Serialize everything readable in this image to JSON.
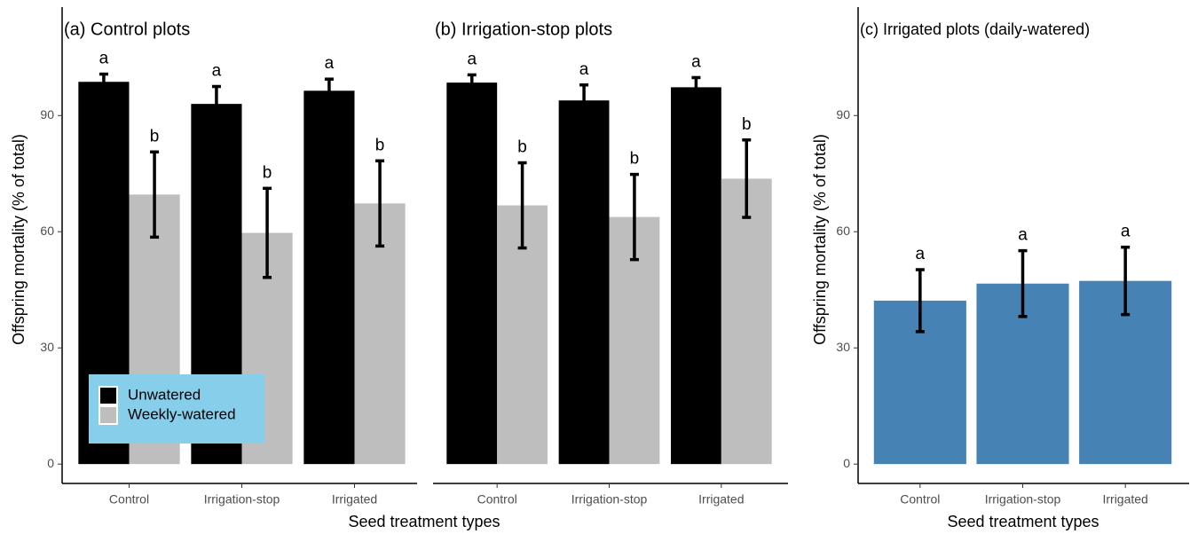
{
  "chart_data": [
    {
      "type": "bar",
      "title": "(a) Control plots",
      "y_label": "Offspring mortality (% of total)",
      "x_label": "Seed treatment types",
      "categories": [
        "Control",
        "Irrigation-stop",
        "Irrigated"
      ],
      "series": [
        {
          "name": "Unwatered",
          "color": "#000000",
          "values": [
            98.7,
            93,
            96.4
          ],
          "errors": [
            2,
            4.5,
            3
          ],
          "sig_labels": [
            "a",
            "a",
            "a"
          ]
        },
        {
          "name": "Weekly-watered",
          "color": "#bebebe",
          "values": [
            69.6,
            59.7,
            67.3
          ],
          "errors": [
            11,
            11.5,
            11
          ],
          "sig_labels": [
            "b",
            "b",
            "b"
          ]
        }
      ],
      "ylim": [
        -5,
        118
      ],
      "yticks": [
        0,
        30,
        60,
        90
      ],
      "legend": "lower left",
      "legend_color": "#87ceeb"
    },
    {
      "type": "bar",
      "title": "(b) Irrigation-stop plots",
      "categories": [
        "Control",
        "Irrigation-stop",
        "Irrigated"
      ],
      "series": [
        {
          "color": "#000000",
          "values": [
            98.5,
            93.9,
            97.3
          ],
          "errors": [
            2,
            4,
            2.5
          ],
          "sig_labels": [
            "a",
            "a",
            "a"
          ]
        },
        {
          "color": "#bebebe",
          "values": [
            66.8,
            63.8,
            73.7
          ],
          "errors": [
            11,
            11,
            10
          ],
          "sig_labels": [
            "b",
            "b",
            "b"
          ]
        }
      ],
      "ylim": [
        -5,
        118
      ]
    },
    {
      "type": "bar",
      "title": "(c) Irrigated plots (daily-watered)",
      "y_label": "Offspring mortality (% of total)",
      "x_label": "Seed treatment types",
      "categories": [
        "Control",
        "Irrigation-stop",
        "Irrigated"
      ],
      "series": [
        {
          "color": "#4682b4",
          "values": [
            42.2,
            46.6,
            47.3
          ],
          "errors": [
            8,
            8.5,
            8.7
          ],
          "sig_labels": [
            "a",
            "a",
            "a"
          ]
        }
      ],
      "ylim": [
        -5,
        118
      ],
      "yticks": [
        0,
        30,
        60,
        90
      ]
    }
  ]
}
